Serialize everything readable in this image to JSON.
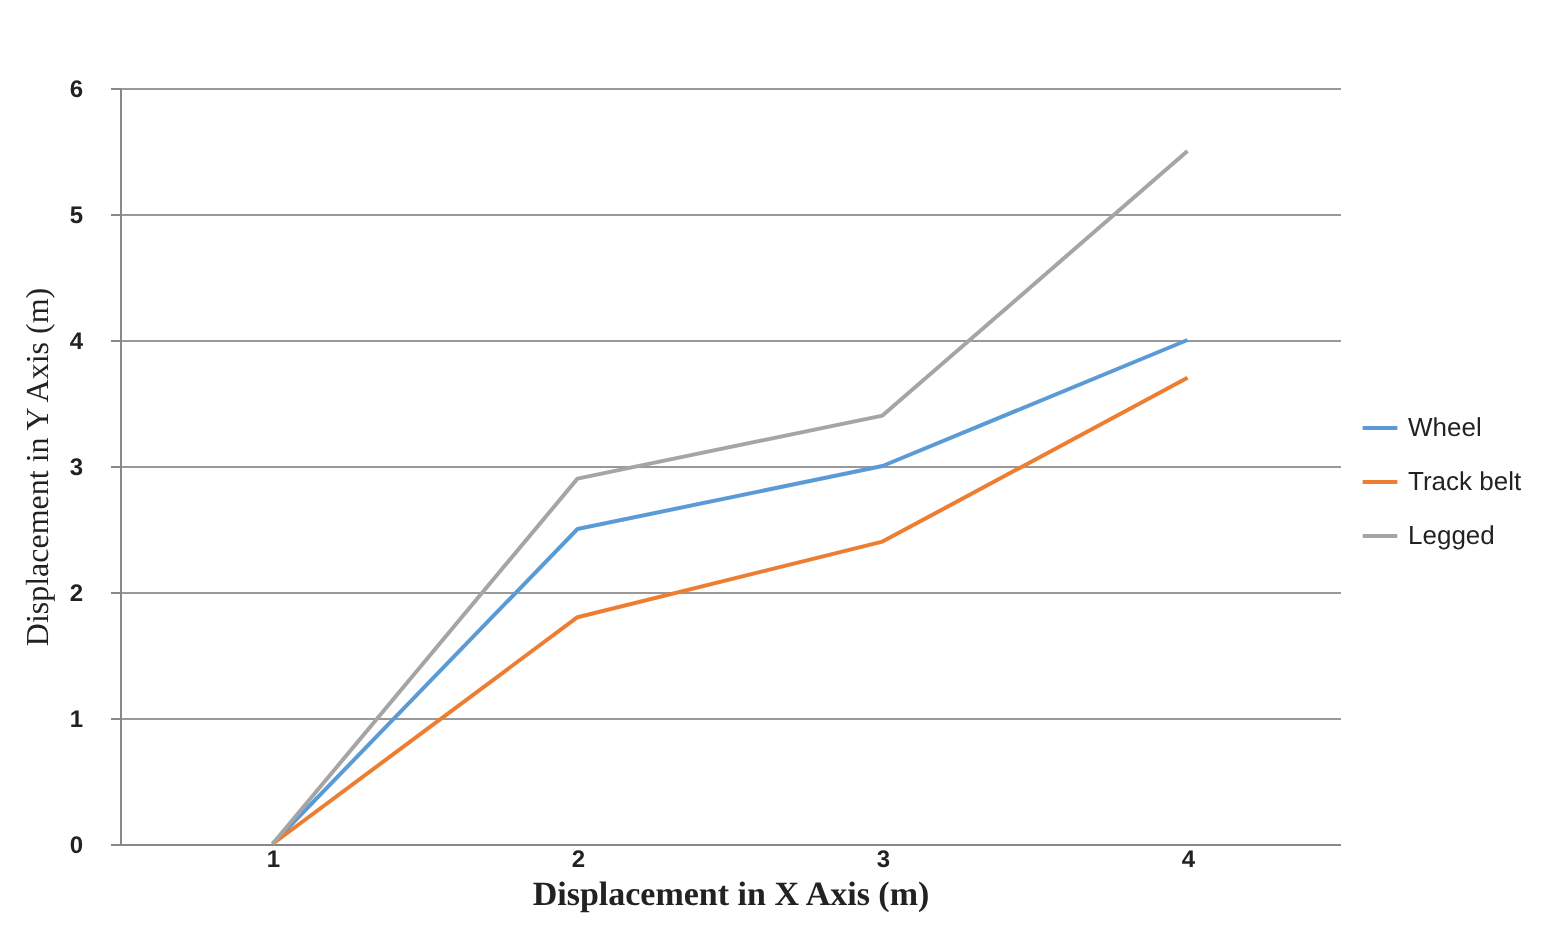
{
  "chart_data": {
    "type": "line",
    "xlabel": "Displacement in X Axis (m)",
    "ylabel": "Displacement in Y Axis (m)",
    "categories": [
      "1",
      "2",
      "3",
      "4"
    ],
    "series": [
      {
        "name": "Wheel",
        "color": "#5b9bd5",
        "values": [
          0,
          2.5,
          3,
          4
        ]
      },
      {
        "name": "Track belt",
        "color": "#ed7d31",
        "values": [
          0,
          1.8,
          2.4,
          3.7
        ]
      },
      {
        "name": "Legged",
        "color": "#a5a5a5",
        "values": [
          0,
          2.9,
          3.4,
          5.5
        ]
      }
    ],
    "ylim": [
      0,
      6
    ],
    "yticks": [
      0,
      1,
      2,
      3,
      4,
      5,
      6
    ],
    "grid": "y",
    "legend": "right",
    "marker": "none",
    "line_style": "solid"
  }
}
